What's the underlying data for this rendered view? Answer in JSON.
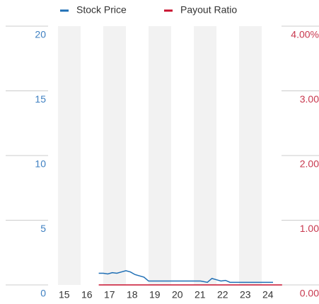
{
  "chart_data": {
    "type": "line",
    "xlim": [
      15,
      25
    ],
    "xticks": [
      15,
      16,
      17,
      18,
      19,
      20,
      21,
      22,
      23,
      24
    ],
    "ylim": [
      0,
      20
    ],
    "yticks": [
      0,
      5,
      10,
      15,
      20
    ],
    "y2lim": [
      0,
      4
    ],
    "y2ticks": [
      {
        "value": 0,
        "label": "0.00"
      },
      {
        "value": 1,
        "label": "1.00"
      },
      {
        "value": 2,
        "label": "2.00"
      },
      {
        "value": 3,
        "label": "3.00"
      },
      {
        "value": 4,
        "label": "4.00%"
      }
    ],
    "yaxis_color": "#3d7fc1",
    "y2axis_color": "#c8384e",
    "series": [
      {
        "name": "Stock Price",
        "color": "#1f6fb5",
        "x": [
          16.8,
          17.0,
          17.2,
          17.4,
          17.6,
          17.8,
          18.0,
          18.2,
          18.4,
          18.6,
          18.8,
          19.0,
          19.5,
          20.0,
          20.5,
          21.0,
          21.3,
          21.6,
          21.8,
          22.0,
          22.2,
          22.4,
          22.6,
          23.0,
          23.5,
          24.0,
          24.5
        ],
        "values": [
          0.9,
          0.9,
          0.85,
          0.95,
          0.9,
          1.0,
          1.1,
          1.0,
          0.8,
          0.7,
          0.6,
          0.3,
          0.3,
          0.3,
          0.3,
          0.3,
          0.3,
          0.2,
          0.5,
          0.4,
          0.3,
          0.35,
          0.2,
          0.2,
          0.2,
          0.2,
          0.2
        ]
      },
      {
        "name": "Payout Ratio",
        "color": "#c8102e",
        "axis": "y2",
        "x": [
          16.8,
          24.9
        ],
        "values": [
          0,
          0
        ]
      }
    ]
  }
}
